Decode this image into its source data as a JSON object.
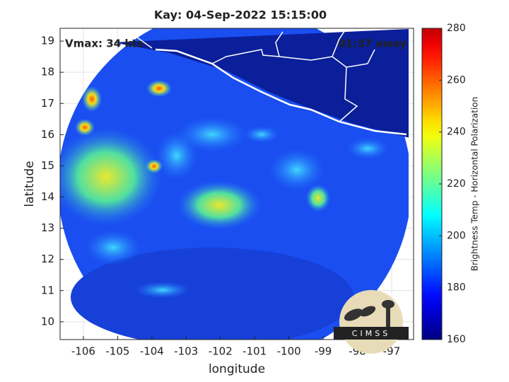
{
  "chart_data": {
    "type": "map",
    "title": "Kay: 04-Sep-2022 15:15:00",
    "annotations": [
      "Vmax: 34 kts",
      "01:37 away"
    ],
    "xlabel": "longitude",
    "ylabel": "latitude",
    "xlim": [
      -106.68,
      -96.36
    ],
    "xticks": [
      -106,
      -105,
      -104,
      -103,
      -102,
      -101,
      -100,
      -99,
      -98,
      -97
    ],
    "ylim": [
      9.43,
      19.41
    ],
    "yticks": [
      10,
      11,
      12,
      13,
      14,
      15,
      16,
      17,
      18,
      19
    ],
    "grid": true,
    "colorbar": {
      "label": "Brightness Temp - Horizontal Polarization",
      "clim": [
        160,
        280
      ],
      "ticks": [
        160,
        180,
        200,
        220,
        240,
        260,
        280
      ],
      "colormap": "jet"
    },
    "logo": "CIMSS"
  }
}
